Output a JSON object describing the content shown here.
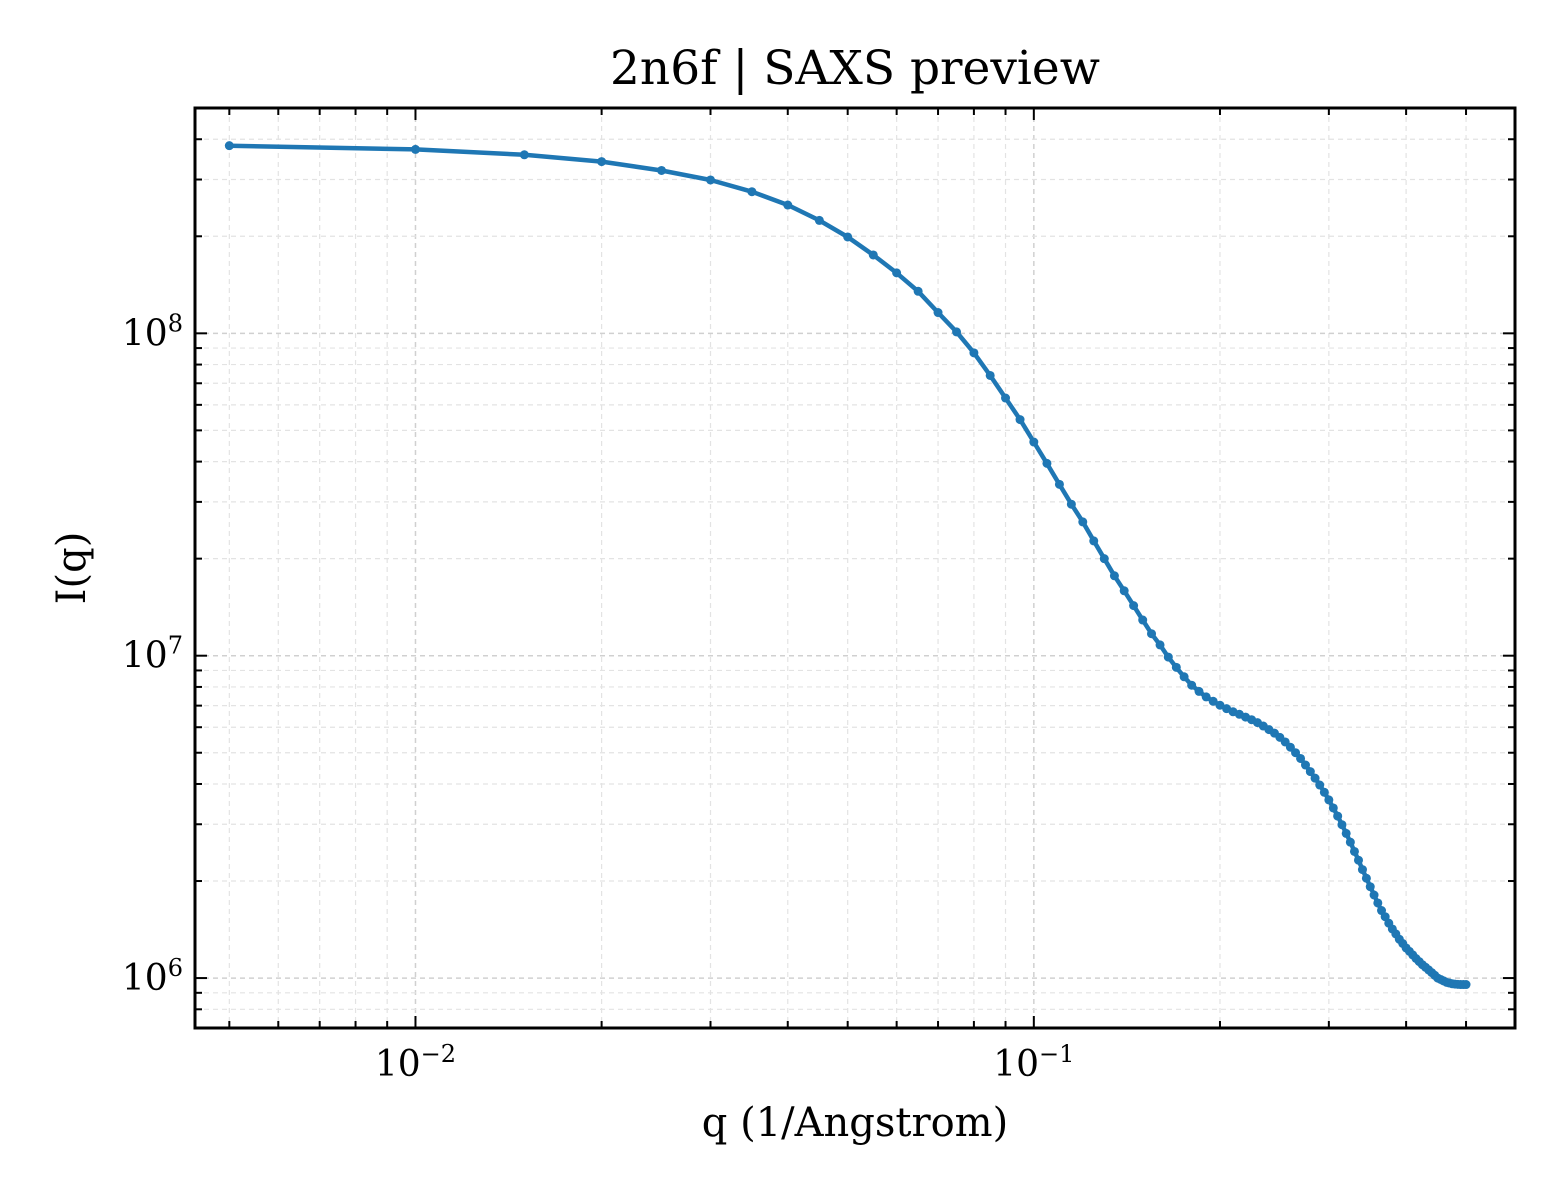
{
  "chart_data": {
    "type": "line",
    "title": "2n6f | SAXS preview",
    "xlabel": "q (1/Angstrom)",
    "ylabel": "I(q)",
    "xscale": "log",
    "yscale": "log",
    "xlim": [
      0.0044,
      0.6
    ],
    "ylim": [
      700000,
      500000000
    ],
    "grid": true,
    "x_ticks": [
      {
        "value": 0.01,
        "base": "10",
        "exp": "−2"
      },
      {
        "value": 0.1,
        "base": "10",
        "exp": "−1"
      }
    ],
    "y_ticks": [
      {
        "value": 1000000,
        "base": "10",
        "exp": "6"
      },
      {
        "value": 10000000,
        "base": "10",
        "exp": "7"
      },
      {
        "value": 100000000,
        "base": "10",
        "exp": "8"
      }
    ],
    "series": [
      {
        "color": "#1f77b4",
        "x": [
          0.005,
          0.01,
          0.015,
          0.02,
          0.025,
          0.03,
          0.035,
          0.04,
          0.045,
          0.05,
          0.055,
          0.06,
          0.065,
          0.07,
          0.075,
          0.08,
          0.085,
          0.09,
          0.095,
          0.1,
          0.105,
          0.11,
          0.115,
          0.12,
          0.125,
          0.13,
          0.135,
          0.14,
          0.145,
          0.15,
          0.155,
          0.16,
          0.165,
          0.17,
          0.175,
          0.18,
          0.185,
          0.19,
          0.195,
          0.2,
          0.205,
          0.21,
          0.215,
          0.22,
          0.225,
          0.23,
          0.235,
          0.24,
          0.245,
          0.25,
          0.255,
          0.26,
          0.265,
          0.27,
          0.275,
          0.28,
          0.285,
          0.29,
          0.295,
          0.3,
          0.305,
          0.31,
          0.315,
          0.32,
          0.325,
          0.33,
          0.335,
          0.34,
          0.345,
          0.35,
          0.355,
          0.36,
          0.365,
          0.37,
          0.375,
          0.38,
          0.385,
          0.39,
          0.395,
          0.4,
          0.405,
          0.41,
          0.415,
          0.42,
          0.425,
          0.43,
          0.435,
          0.44,
          0.445,
          0.45,
          0.455,
          0.46,
          0.465,
          0.47,
          0.475,
          0.48,
          0.485,
          0.49,
          0.495,
          0.5
        ],
        "y": [
          382000000,
          372000000,
          358000000,
          341000000,
          320000000,
          299000000,
          275000000,
          250000000,
          224000000,
          199000000,
          175000000,
          154000000,
          135000000,
          116000000,
          101000000,
          87000000,
          74000000,
          63000000,
          54000000,
          46000000,
          39500000,
          34000000,
          29500000,
          26000000,
          22700000,
          20000000,
          17700000,
          15900000,
          14300000,
          12900000,
          11700000,
          10800000,
          9900000,
          9200000,
          8600000,
          8100000,
          7750000,
          7450000,
          7220000,
          7020000,
          6850000,
          6700000,
          6580000,
          6450000,
          6330000,
          6200000,
          6050000,
          5900000,
          5750000,
          5580000,
          5400000,
          5200000,
          5000000,
          4800000,
          4580000,
          4370000,
          4170000,
          3970000,
          3770000,
          3570000,
          3370000,
          3180000,
          2990000,
          2810000,
          2640000,
          2470000,
          2320000,
          2170000,
          2040000,
          1920000,
          1810000,
          1710000,
          1620000,
          1550000,
          1480000,
          1420000,
          1370000,
          1320000,
          1280000,
          1240000,
          1210000,
          1180000,
          1150000,
          1125000,
          1100000,
          1080000,
          1060000,
          1040000,
          1020000,
          1000000,
          990000,
          980000,
          970000,
          965000,
          960000,
          958000,
          956000,
          955000,
          955000,
          955000
        ]
      }
    ]
  }
}
